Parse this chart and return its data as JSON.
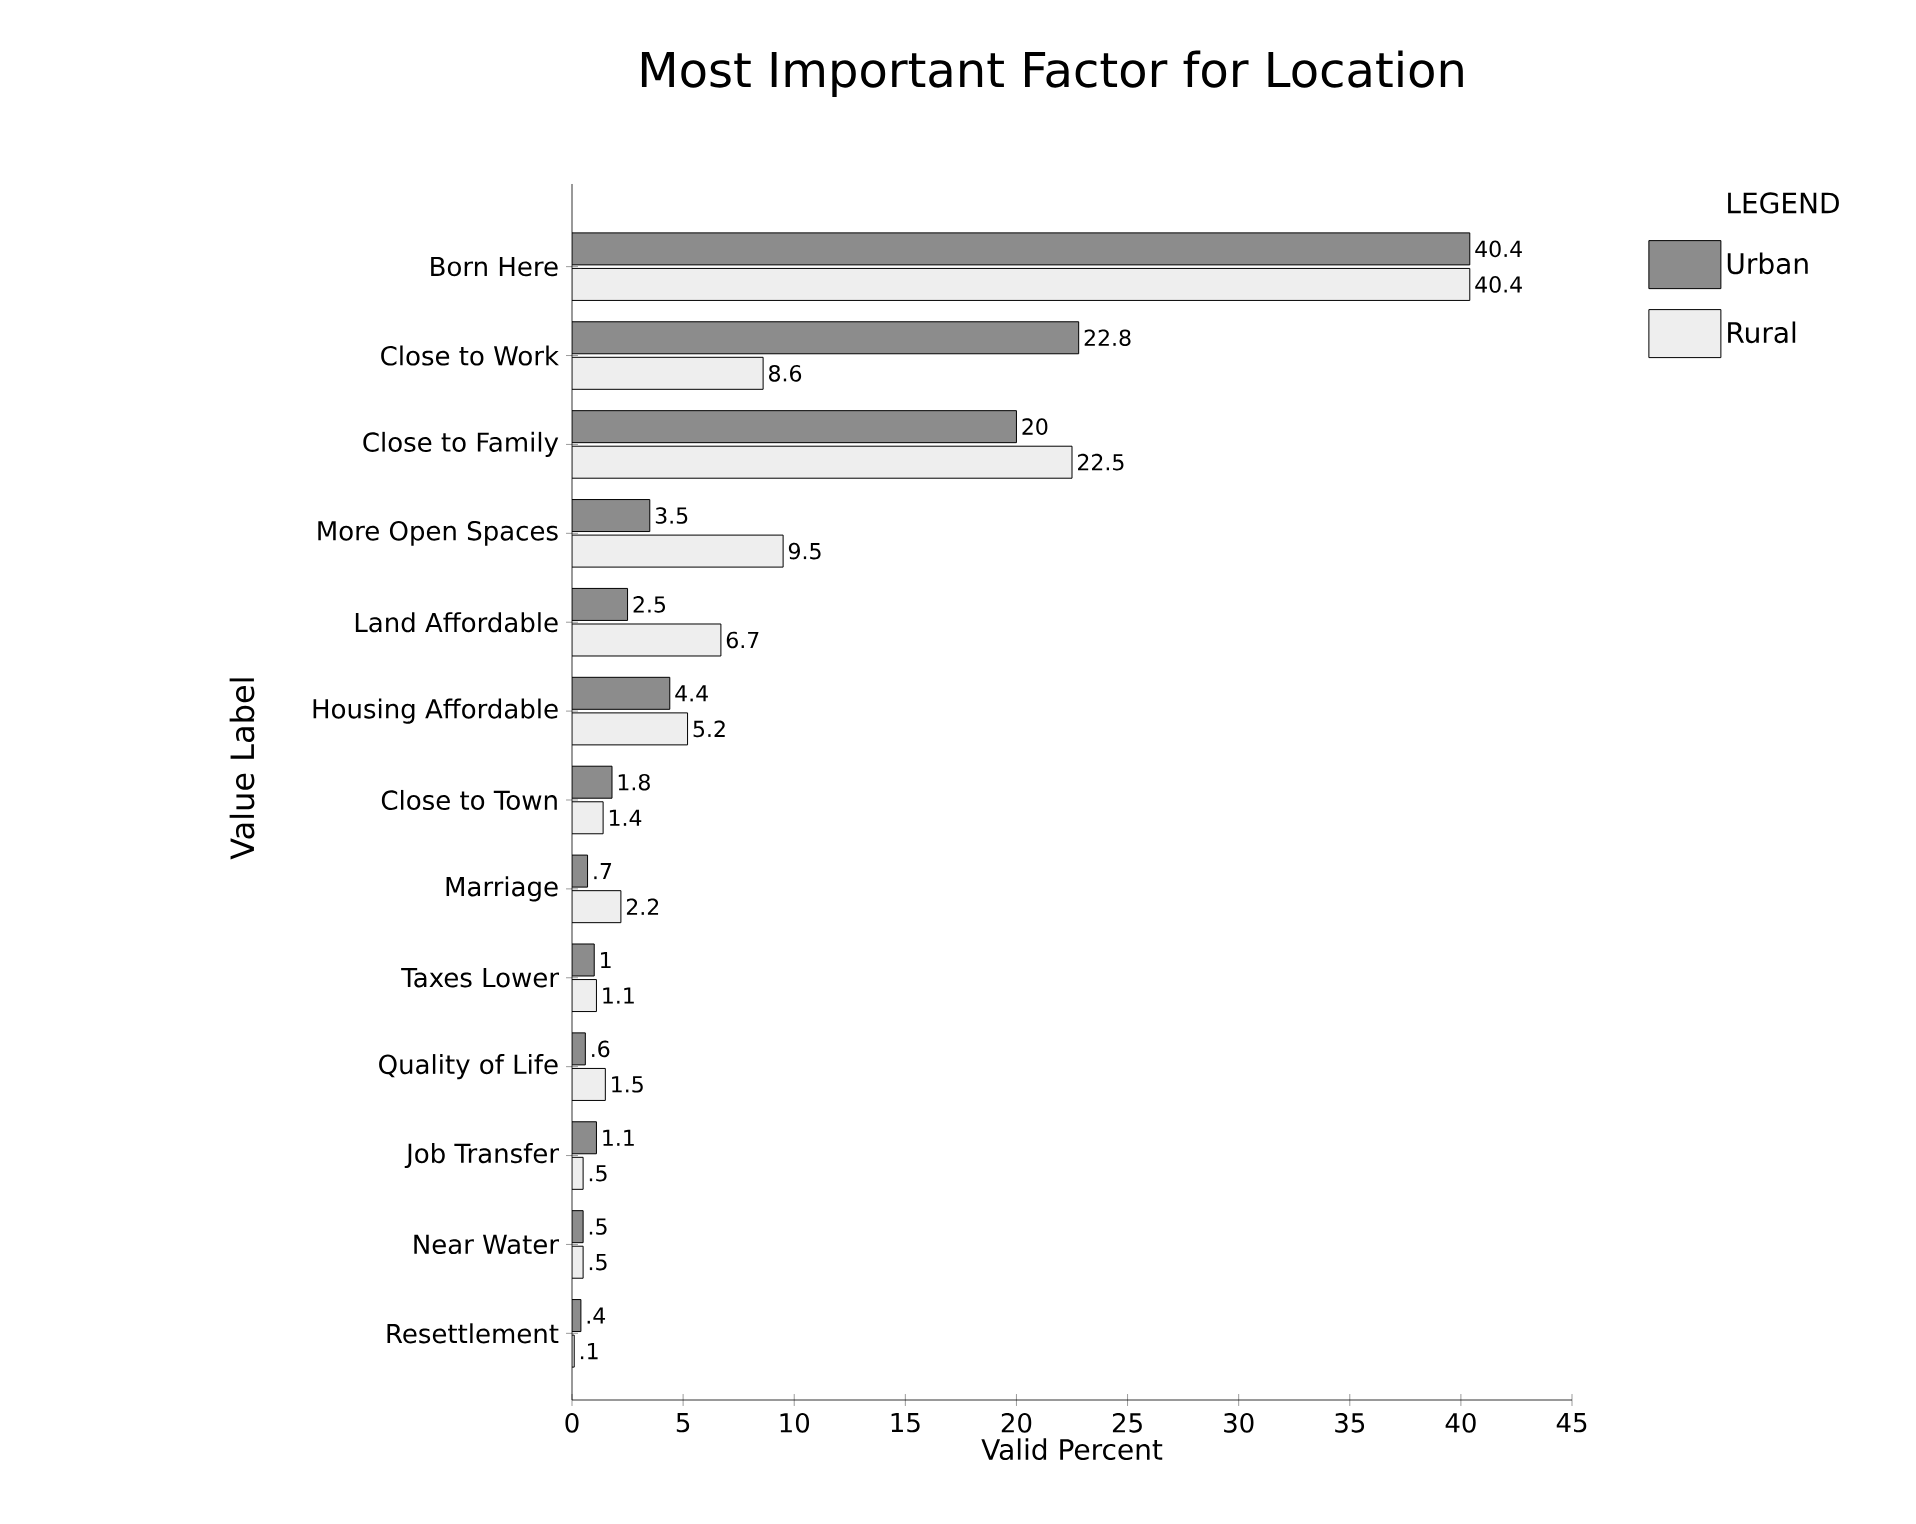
{
  "chart_data": {
    "type": "bar",
    "orientation": "horizontal",
    "title": "Most Important Factor for Location",
    "xlabel": "Valid Percent",
    "ylabel": "Value Label",
    "legend_title": "LEGEND",
    "legend": "right",
    "categories": [
      "Born Here",
      "Close to Work",
      "Close to Family",
      "More Open Spaces",
      "Land Affordable",
      "Housing Affordable",
      "Close to Town",
      "Marriage",
      "Taxes Lower",
      "Quality of Life",
      "Job Transfer",
      "Near Water",
      "Resettlement"
    ],
    "series": [
      {
        "name": "Urban",
        "color": "#8c8c8c",
        "values": [
          40.4,
          22.8,
          20,
          3.5,
          2.5,
          4.4,
          1.8,
          0.7,
          1,
          0.6,
          1.1,
          0.5,
          0.4
        ],
        "value_labels": [
          "40.4",
          "22.8",
          "20",
          "3.5",
          "2.5",
          "4.4",
          "1.8",
          ".7",
          "1",
          ".6",
          "1.1",
          ".5",
          ".4"
        ]
      },
      {
        "name": "Rural",
        "color": "#eeeeee",
        "values": [
          40.4,
          8.6,
          22.5,
          9.5,
          6.7,
          5.2,
          1.4,
          2.2,
          1.1,
          1.5,
          0.5,
          0.5,
          0.1
        ],
        "value_labels": [
          "40.4",
          "8.6",
          "22.5",
          "9.5",
          "6.7",
          "5.2",
          "1.4",
          "2.2",
          "1.1",
          "1.5",
          ".5",
          ".5",
          ".1"
        ]
      }
    ],
    "xlim": [
      0,
      45
    ],
    "xticks": [
      0,
      5,
      10,
      15,
      20,
      25,
      30,
      35,
      40,
      45
    ],
    "grid": false
  }
}
